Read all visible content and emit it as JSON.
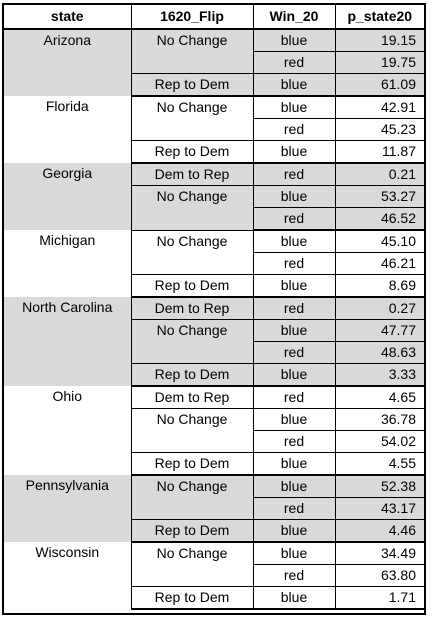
{
  "headers": [
    "state",
    "1620_Flip",
    "Win_20",
    "p_state20"
  ],
  "states": [
    {
      "name": "Arizona",
      "shaded": true,
      "groups": [
        {
          "flip": "No Change",
          "rows": [
            {
              "win": "blue",
              "p": "19.15"
            },
            {
              "win": "red",
              "p": "19.75"
            }
          ]
        },
        {
          "flip": "Rep to Dem",
          "rows": [
            {
              "win": "blue",
              "p": "61.09"
            }
          ]
        }
      ]
    },
    {
      "name": "Florida",
      "shaded": false,
      "groups": [
        {
          "flip": "No Change",
          "rows": [
            {
              "win": "blue",
              "p": "42.91"
            },
            {
              "win": "red",
              "p": "45.23"
            }
          ]
        },
        {
          "flip": "Rep to Dem",
          "rows": [
            {
              "win": "blue",
              "p": "11.87"
            }
          ]
        }
      ]
    },
    {
      "name": "Georgia",
      "shaded": true,
      "groups": [
        {
          "flip": "Dem to Rep",
          "rows": [
            {
              "win": "red",
              "p": "0.21"
            }
          ]
        },
        {
          "flip": "No Change",
          "rows": [
            {
              "win": "blue",
              "p": "53.27"
            },
            {
              "win": "red",
              "p": "46.52"
            }
          ]
        }
      ]
    },
    {
      "name": "Michigan",
      "shaded": false,
      "groups": [
        {
          "flip": "No Change",
          "rows": [
            {
              "win": "blue",
              "p": "45.10"
            },
            {
              "win": "red",
              "p": "46.21"
            }
          ]
        },
        {
          "flip": "Rep to Dem",
          "rows": [
            {
              "win": "blue",
              "p": "8.69"
            }
          ]
        }
      ]
    },
    {
      "name": "North Carolina",
      "shaded": true,
      "groups": [
        {
          "flip": "Dem to Rep",
          "rows": [
            {
              "win": "red",
              "p": "0.27"
            }
          ]
        },
        {
          "flip": "No Change",
          "rows": [
            {
              "win": "blue",
              "p": "47.77"
            },
            {
              "win": "red",
              "p": "48.63"
            }
          ]
        },
        {
          "flip": "Rep to Dem",
          "rows": [
            {
              "win": "blue",
              "p": "3.33"
            }
          ]
        }
      ]
    },
    {
      "name": "Ohio",
      "shaded": false,
      "groups": [
        {
          "flip": "Dem to Rep",
          "rows": [
            {
              "win": "red",
              "p": "4.65"
            }
          ]
        },
        {
          "flip": "No Change",
          "rows": [
            {
              "win": "blue",
              "p": "36.78"
            },
            {
              "win": "red",
              "p": "54.02"
            }
          ]
        },
        {
          "flip": "Rep to Dem",
          "rows": [
            {
              "win": "blue",
              "p": "4.55"
            }
          ]
        }
      ]
    },
    {
      "name": "Pennsylvania",
      "shaded": true,
      "groups": [
        {
          "flip": "No Change",
          "rows": [
            {
              "win": "blue",
              "p": "52.38"
            },
            {
              "win": "red",
              "p": "43.17"
            }
          ]
        },
        {
          "flip": "Rep to Dem",
          "rows": [
            {
              "win": "blue",
              "p": "4.46"
            }
          ]
        }
      ]
    },
    {
      "name": "Wisconsin",
      "shaded": false,
      "groups": [
        {
          "flip": "No Change",
          "rows": [
            {
              "win": "blue",
              "p": "34.49"
            },
            {
              "win": "red",
              "p": "63.80"
            }
          ]
        },
        {
          "flip": "Rep to Dem",
          "rows": [
            {
              "win": "blue",
              "p": "1.71"
            }
          ]
        }
      ]
    }
  ]
}
